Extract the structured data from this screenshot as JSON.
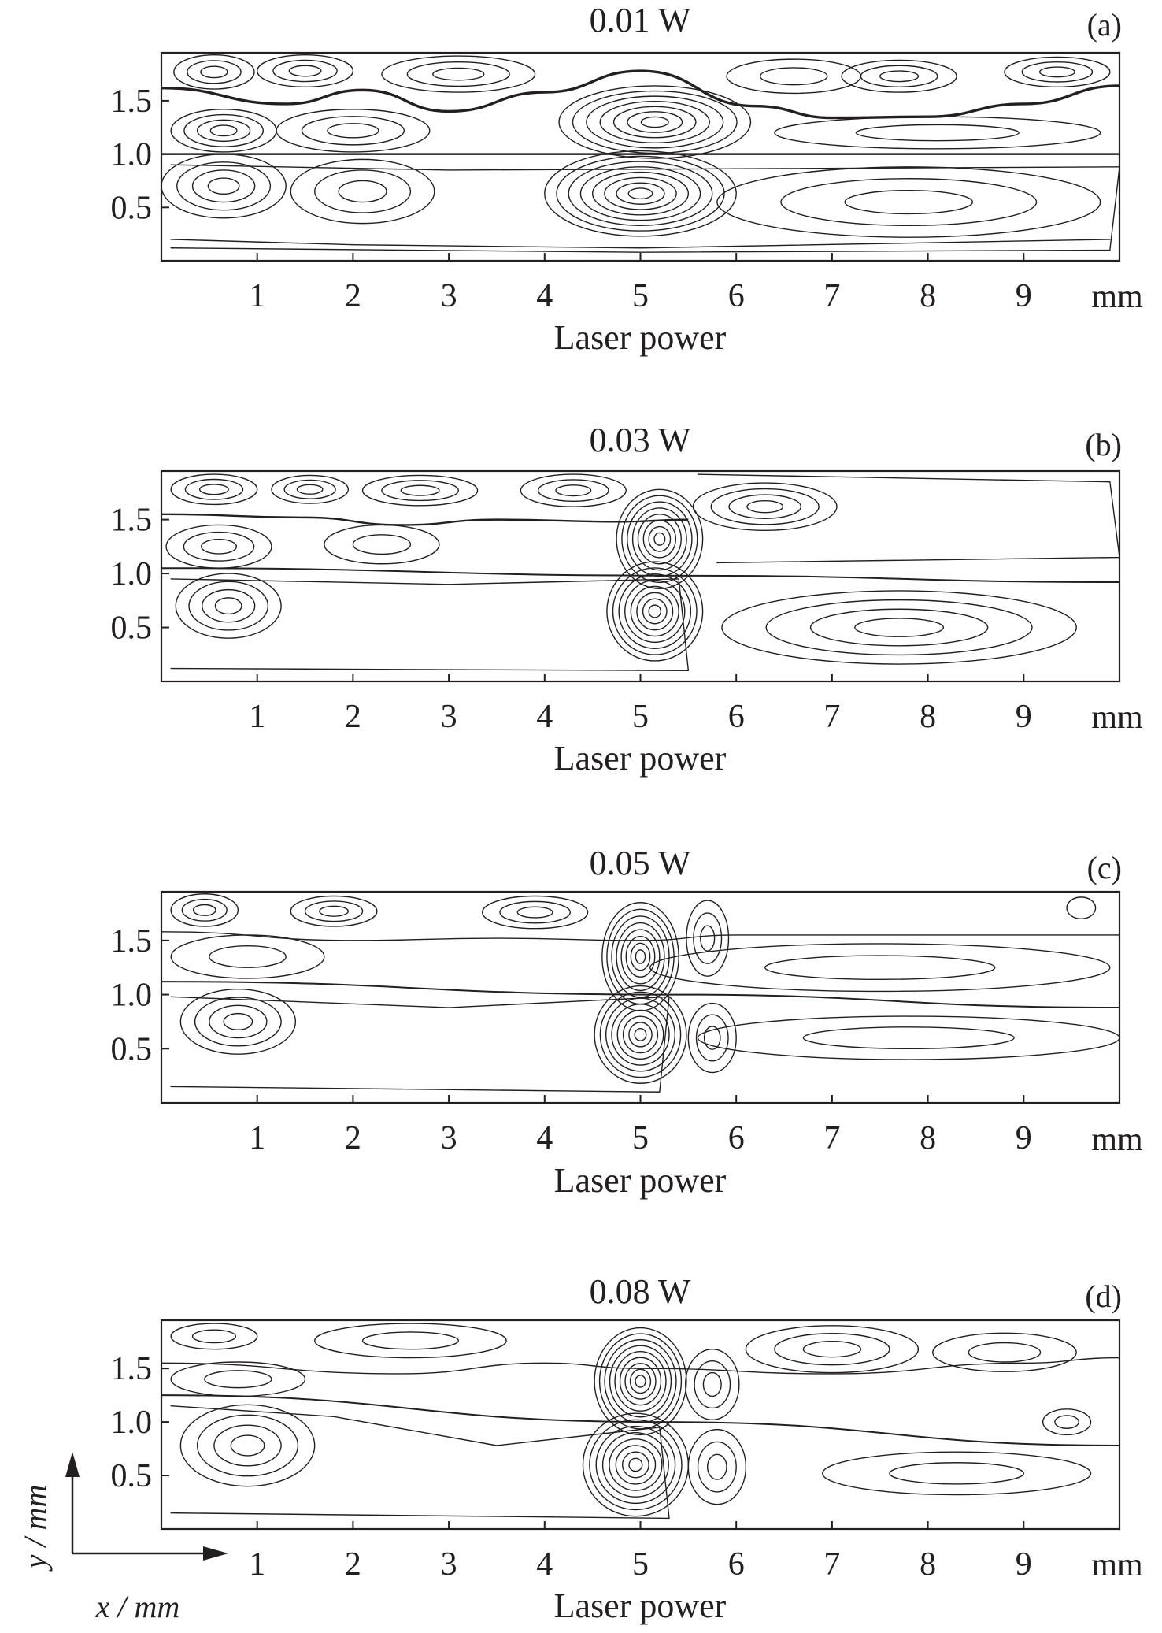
{
  "figure": {
    "axis_indicator": {
      "x_label": "x / mm",
      "y_label": "y / mm"
    }
  },
  "chart_data": [
    {
      "type": "contour",
      "panel_label": "(a)",
      "title": "0.01 W",
      "xlabel": "Laser power",
      "x_unit": "mm",
      "xlim": [
        0,
        10
      ],
      "ylim": [
        0,
        1.95
      ],
      "xticks": [
        "1",
        "2",
        "3",
        "4",
        "5",
        "6",
        "7",
        "8",
        "9"
      ],
      "yticks": [
        "0.5",
        "1.0",
        "1.5"
      ],
      "interfaces": [
        {
          "name": "interface",
          "points": [
            [
              0,
              1.0
            ],
            [
              10,
              1.0
            ]
          ],
          "weight": 2.6
        },
        {
          "name": "interface",
          "points": [
            [
              0,
              1.62
            ],
            [
              1.3,
              1.47
            ],
            [
              2.1,
              1.6
            ],
            [
              3,
              1.4
            ],
            [
              4,
              1.58
            ],
            [
              5,
              1.78
            ],
            [
              6.2,
              1.45
            ],
            [
              7,
              1.34
            ],
            [
              8,
              1.35
            ],
            [
              9,
              1.47
            ],
            [
              10,
              1.64
            ]
          ],
          "weight": 3.4
        }
      ],
      "vortices": [
        {
          "cx": 0.55,
          "cy": 1.77,
          "rx": 0.42,
          "ry": 0.16,
          "rings": 3
        },
        {
          "cx": 1.5,
          "cy": 1.78,
          "rx": 0.5,
          "ry": 0.15,
          "rings": 3
        },
        {
          "cx": 3.1,
          "cy": 1.75,
          "rx": 0.8,
          "ry": 0.17,
          "rings": 3
        },
        {
          "cx": 6.6,
          "cy": 1.73,
          "rx": 0.7,
          "ry": 0.16,
          "rings": 2
        },
        {
          "cx": 7.7,
          "cy": 1.73,
          "rx": 0.6,
          "ry": 0.15,
          "rings": 3
        },
        {
          "cx": 9.35,
          "cy": 1.77,
          "rx": 0.55,
          "ry": 0.14,
          "rings": 3
        },
        {
          "cx": 0.65,
          "cy": 1.22,
          "rx": 0.55,
          "ry": 0.2,
          "rings": 4
        },
        {
          "cx": 2.0,
          "cy": 1.22,
          "rx": 0.8,
          "ry": 0.2,
          "rings": 3
        },
        {
          "cx": 5.15,
          "cy": 1.3,
          "rx": 1.0,
          "ry": 0.34,
          "rings": 7
        },
        {
          "cx": 8.1,
          "cy": 1.2,
          "rx": 1.7,
          "ry": 0.15,
          "rings": 2
        },
        {
          "cx": 0.65,
          "cy": 0.7,
          "rx": 0.65,
          "ry": 0.3,
          "rings": 4
        },
        {
          "cx": 2.1,
          "cy": 0.65,
          "rx": 0.75,
          "ry": 0.3,
          "rings": 3
        },
        {
          "cx": 5.0,
          "cy": 0.63,
          "rx": 1.0,
          "ry": 0.4,
          "rings": 8
        },
        {
          "cx": 7.8,
          "cy": 0.55,
          "rx": 2.0,
          "ry": 0.33,
          "rings": 3
        }
      ],
      "envelopes": [
        {
          "points": [
            [
              0.1,
              0.9
            ],
            [
              3,
              0.85
            ],
            [
              10,
              0.88
            ],
            [
              9.9,
              0.1
            ],
            [
              5,
              0.08
            ],
            [
              0.1,
              0.12
            ]
          ]
        },
        {
          "points": [
            [
              0.1,
              0.2
            ],
            [
              2,
              0.15
            ],
            [
              5,
              0.12
            ],
            [
              9.9,
              0.2
            ]
          ]
        }
      ]
    },
    {
      "type": "contour",
      "panel_label": "(b)",
      "title": "0.03 W",
      "xlabel": "Laser power",
      "x_unit": "mm",
      "xlim": [
        0,
        10
      ],
      "ylim": [
        0,
        1.95
      ],
      "xticks": [
        "1",
        "2",
        "3",
        "4",
        "5",
        "6",
        "7",
        "8",
        "9"
      ],
      "yticks": [
        "0.5",
        "1.0",
        "1.5"
      ],
      "interfaces": [
        {
          "name": "interface",
          "points": [
            [
              0,
              1.05
            ],
            [
              5.5,
              0.98
            ],
            [
              10,
              0.92
            ]
          ],
          "weight": 2.0
        },
        {
          "name": "interface",
          "points": [
            [
              0,
              1.55
            ],
            [
              1.5,
              1.52
            ],
            [
              2.5,
              1.45
            ],
            [
              3.5,
              1.5
            ],
            [
              4.8,
              1.48
            ],
            [
              5.5,
              1.5
            ]
          ],
          "weight": 2.4
        }
      ],
      "vortices": [
        {
          "cx": 0.55,
          "cy": 1.78,
          "rx": 0.45,
          "ry": 0.14,
          "rings": 3
        },
        {
          "cx": 1.55,
          "cy": 1.78,
          "rx": 0.4,
          "ry": 0.13,
          "rings": 3
        },
        {
          "cx": 2.7,
          "cy": 1.77,
          "rx": 0.6,
          "ry": 0.14,
          "rings": 3
        },
        {
          "cx": 4.3,
          "cy": 1.77,
          "rx": 0.55,
          "ry": 0.15,
          "rings": 3
        },
        {
          "cx": 6.3,
          "cy": 1.62,
          "rx": 0.75,
          "ry": 0.22,
          "rings": 4
        },
        {
          "cx": 0.6,
          "cy": 1.25,
          "rx": 0.55,
          "ry": 0.2,
          "rings": 3
        },
        {
          "cx": 2.3,
          "cy": 1.27,
          "rx": 0.6,
          "ry": 0.18,
          "rings": 2
        },
        {
          "cx": 5.2,
          "cy": 1.32,
          "rx": 0.45,
          "ry": 0.46,
          "rings": 8
        },
        {
          "cx": 0.7,
          "cy": 0.7,
          "rx": 0.55,
          "ry": 0.3,
          "rings": 4
        },
        {
          "cx": 5.15,
          "cy": 0.65,
          "rx": 0.5,
          "ry": 0.46,
          "rings": 8
        },
        {
          "cx": 7.7,
          "cy": 0.5,
          "rx": 1.85,
          "ry": 0.34,
          "rings": 4
        }
      ],
      "envelopes": [
        {
          "points": [
            [
              5.6,
              1.92
            ],
            [
              9.9,
              1.85
            ],
            [
              10,
              1.15
            ],
            [
              5.8,
              1.1
            ]
          ]
        },
        {
          "points": [
            [
              0.1,
              0.95
            ],
            [
              3,
              0.9
            ],
            [
              5.4,
              0.95
            ],
            [
              5.5,
              0.1
            ],
            [
              0.1,
              0.12
            ]
          ]
        }
      ]
    },
    {
      "type": "contour",
      "panel_label": "(c)",
      "title": "0.05 W",
      "xlabel": "Laser power",
      "x_unit": "mm",
      "xlim": [
        0,
        10
      ],
      "ylim": [
        0,
        1.95
      ],
      "xticks": [
        "1",
        "2",
        "3",
        "4",
        "5",
        "6",
        "7",
        "8",
        "9"
      ],
      "yticks": [
        "0.5",
        "1.0",
        "1.5"
      ],
      "interfaces": [
        {
          "name": "interface",
          "points": [
            [
              0,
              1.12
            ],
            [
              5.3,
              1.0
            ],
            [
              10,
              0.88
            ]
          ],
          "weight": 2.0
        },
        {
          "name": "interface",
          "points": [
            [
              0,
              1.58
            ],
            [
              2,
              1.5
            ],
            [
              3.5,
              1.52
            ],
            [
              5,
              1.5
            ],
            [
              6,
              1.55
            ],
            [
              10,
              1.55
            ]
          ],
          "weight": 1.4
        }
      ],
      "vortices": [
        {
          "cx": 0.45,
          "cy": 1.78,
          "rx": 0.35,
          "ry": 0.15,
          "rings": 3
        },
        {
          "cx": 1.8,
          "cy": 1.77,
          "rx": 0.45,
          "ry": 0.14,
          "rings": 3
        },
        {
          "cx": 3.9,
          "cy": 1.76,
          "rx": 0.55,
          "ry": 0.15,
          "rings": 3
        },
        {
          "cx": 9.6,
          "cy": 1.8,
          "rx": 0.15,
          "ry": 0.1,
          "rings": 1
        },
        {
          "cx": 0.9,
          "cy": 1.35,
          "rx": 0.8,
          "ry": 0.2,
          "rings": 2
        },
        {
          "cx": 5.0,
          "cy": 1.35,
          "rx": 0.4,
          "ry": 0.5,
          "rings": 8
        },
        {
          "cx": 5.7,
          "cy": 1.52,
          "rx": 0.22,
          "ry": 0.35,
          "rings": 3
        },
        {
          "cx": 7.5,
          "cy": 1.25,
          "rx": 2.4,
          "ry": 0.22,
          "rings": 2
        },
        {
          "cx": 0.8,
          "cy": 0.75,
          "rx": 0.6,
          "ry": 0.3,
          "rings": 4
        },
        {
          "cx": 5.0,
          "cy": 0.63,
          "rx": 0.48,
          "ry": 0.45,
          "rings": 8
        },
        {
          "cx": 5.75,
          "cy": 0.6,
          "rx": 0.25,
          "ry": 0.32,
          "rings": 3
        },
        {
          "cx": 7.8,
          "cy": 0.6,
          "rx": 2.2,
          "ry": 0.2,
          "rings": 2
        }
      ],
      "envelopes": [
        {
          "points": [
            [
              0.1,
              0.98
            ],
            [
              3,
              0.88
            ],
            [
              5.3,
              0.98
            ],
            [
              5.2,
              0.1
            ],
            [
              0.1,
              0.15
            ]
          ]
        }
      ]
    },
    {
      "type": "contour",
      "panel_label": "(d)",
      "title": "0.08 W",
      "xlabel": "Laser power",
      "x_unit": "mm",
      "xlim": [
        0,
        10
      ],
      "ylim": [
        0,
        1.95
      ],
      "xticks": [
        "1",
        "2",
        "3",
        "4",
        "5",
        "6",
        "7",
        "8",
        "9"
      ],
      "yticks": [
        "0.5",
        "1.0",
        "1.5"
      ],
      "interfaces": [
        {
          "name": "interface",
          "points": [
            [
              0,
              1.25
            ],
            [
              5.2,
              1.0
            ],
            [
              10,
              0.78
            ]
          ],
          "weight": 2.0
        },
        {
          "name": "interface",
          "points": [
            [
              0,
              1.55
            ],
            [
              2.5,
              1.45
            ],
            [
              4,
              1.55
            ],
            [
              5,
              1.5
            ],
            [
              7,
              1.45
            ],
            [
              9,
              1.55
            ],
            [
              10,
              1.6
            ]
          ],
          "weight": 1.4
        }
      ],
      "vortices": [
        {
          "cx": 0.55,
          "cy": 1.8,
          "rx": 0.45,
          "ry": 0.12,
          "rings": 2
        },
        {
          "cx": 2.6,
          "cy": 1.76,
          "rx": 1.0,
          "ry": 0.16,
          "rings": 2
        },
        {
          "cx": 7.0,
          "cy": 1.68,
          "rx": 0.9,
          "ry": 0.22,
          "rings": 3
        },
        {
          "cx": 8.8,
          "cy": 1.65,
          "rx": 0.75,
          "ry": 0.18,
          "rings": 2
        },
        {
          "cx": 0.8,
          "cy": 1.4,
          "rx": 0.7,
          "ry": 0.16,
          "rings": 2
        },
        {
          "cx": 5.0,
          "cy": 1.38,
          "rx": 0.48,
          "ry": 0.5,
          "rings": 9
        },
        {
          "cx": 5.75,
          "cy": 1.35,
          "rx": 0.28,
          "ry": 0.33,
          "rings": 3
        },
        {
          "cx": 9.45,
          "cy": 1.0,
          "rx": 0.25,
          "ry": 0.12,
          "rings": 2
        },
        {
          "cx": 0.9,
          "cy": 0.78,
          "rx": 0.7,
          "ry": 0.38,
          "rings": 4
        },
        {
          "cx": 4.95,
          "cy": 0.6,
          "rx": 0.55,
          "ry": 0.48,
          "rings": 8
        },
        {
          "cx": 5.8,
          "cy": 0.58,
          "rx": 0.3,
          "ry": 0.35,
          "rings": 3
        },
        {
          "cx": 8.3,
          "cy": 0.52,
          "rx": 1.4,
          "ry": 0.2,
          "rings": 2
        }
      ],
      "envelopes": [
        {
          "points": [
            [
              0.1,
              1.15
            ],
            [
              1.8,
              1.05
            ],
            [
              3.5,
              0.78
            ],
            [
              5.2,
              0.95
            ],
            [
              5.3,
              0.1
            ],
            [
              0.1,
              0.15
            ]
          ]
        }
      ]
    }
  ]
}
